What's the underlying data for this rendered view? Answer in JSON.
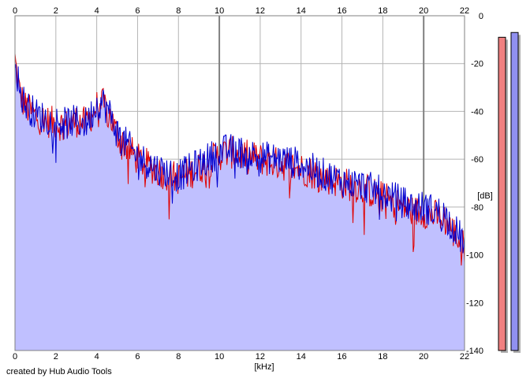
{
  "credit": "created by Hub Audio Tools",
  "chart_data": {
    "type": "area",
    "xlabel": "[kHz]",
    "ylabel": "[dB]",
    "xlim": [
      0,
      22
    ],
    "ylim": [
      -140,
      0
    ],
    "x_ticks": [
      0,
      2,
      4,
      6,
      8,
      10,
      12,
      14,
      16,
      18,
      20,
      22
    ],
    "y_ticks": [
      0,
      -20,
      -40,
      -60,
      -80,
      -100,
      -120,
      -140
    ],
    "x_tick_labels": [
      "0",
      "2",
      "4",
      "6",
      "8",
      "10",
      "12",
      "14",
      "16",
      "18",
      "20",
      "22"
    ],
    "y_tick_labels": [
      "0",
      "-20",
      "-40",
      "-60",
      "-80",
      "-100",
      "-120",
      "-140"
    ],
    "grid": true,
    "colors": {
      "fill": "#c0c0ff",
      "left": "#e00000",
      "right": "#0000d0",
      "grid": "#b4b4b4",
      "grid_major": "#808080",
      "meter_left": "#f08080",
      "meter_right": "#9090f0"
    },
    "series": [
      {
        "key": "left",
        "x": [
          0,
          0.1,
          0.25,
          0.5,
          1,
          1.5,
          2,
          2.5,
          3,
          3.5,
          4,
          4.3,
          4.7,
          5,
          6,
          7,
          8,
          9,
          10,
          10.5,
          11,
          12,
          13,
          14,
          15,
          16,
          17,
          18,
          19,
          19.5,
          20,
          21,
          22
        ],
        "values": [
          -18,
          -25,
          -33,
          -38,
          -42,
          -44,
          -45,
          -46,
          -44,
          -45,
          -38,
          -37,
          -43,
          -50,
          -60,
          -65,
          -68,
          -64,
          -58,
          -57,
          -58,
          -60,
          -62,
          -64,
          -67,
          -70,
          -72,
          -76,
          -80,
          -82,
          -82,
          -85,
          -97
        ]
      },
      {
        "key": "right",
        "x": [
          0,
          0.1,
          0.25,
          0.5,
          1,
          1.5,
          2,
          2.5,
          3,
          3.5,
          4,
          4.3,
          4.7,
          5,
          6,
          7,
          8,
          9,
          10,
          10.5,
          11,
          12,
          13,
          14,
          15,
          16,
          17,
          18,
          19,
          19.5,
          20,
          21,
          22
        ],
        "values": [
          -16,
          -24,
          -32,
          -37,
          -41,
          -43,
          -44,
          -45,
          -44,
          -45,
          -37,
          -36,
          -42,
          -49,
          -59,
          -64,
          -67,
          -62,
          -57,
          -56,
          -57,
          -59,
          -60,
          -62,
          -66,
          -69,
          -71,
          -74,
          -78,
          -80,
          -80,
          -83,
          -95
        ]
      }
    ],
    "meters": [
      {
        "key": "left",
        "value": -9
      },
      {
        "key": "right",
        "value": -7
      }
    ]
  }
}
